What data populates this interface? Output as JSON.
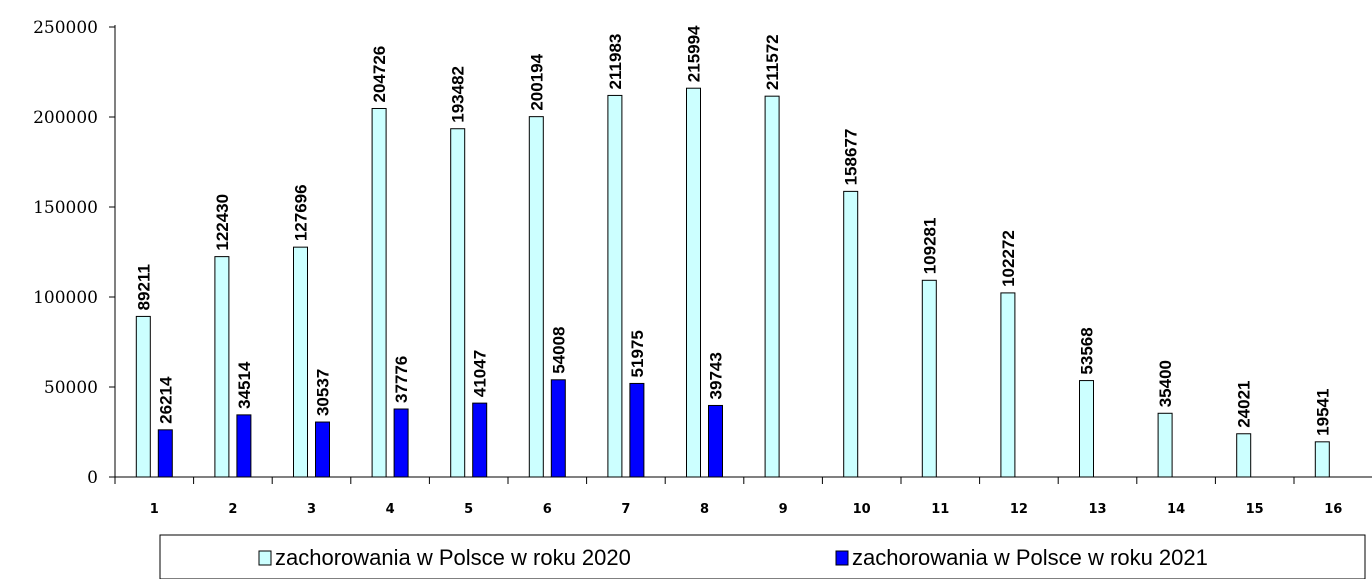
{
  "chart_data": {
    "type": "bar",
    "title": "",
    "xlabel": "",
    "ylabel": "",
    "categories": [
      "1",
      "2",
      "3",
      "4",
      "5",
      "6",
      "7",
      "8",
      "9",
      "10",
      "11",
      "12",
      "13",
      "14",
      "15",
      "16"
    ],
    "ylim": [
      0,
      250000
    ],
    "yticks": [
      "0",
      "50000",
      "100000",
      "150000",
      "200000",
      "250000"
    ],
    "grid": false,
    "legend_position": "bottom",
    "series": [
      {
        "name": "zachorowania w Polsce w roku 2020",
        "color": "#ccffff",
        "values": [
          89211,
          122430,
          127696,
          204726,
          193482,
          200194,
          211983,
          215994,
          211572,
          158677,
          109281,
          102272,
          53568,
          35400,
          24021,
          19541
        ]
      },
      {
        "name": "zachorowania w Polsce w roku 2021",
        "color": "#0000ff",
        "values": [
          26214,
          34514,
          30537,
          37776,
          41047,
          54008,
          51975,
          39743,
          null,
          null,
          null,
          null,
          null,
          null,
          null,
          null
        ]
      }
    ]
  }
}
